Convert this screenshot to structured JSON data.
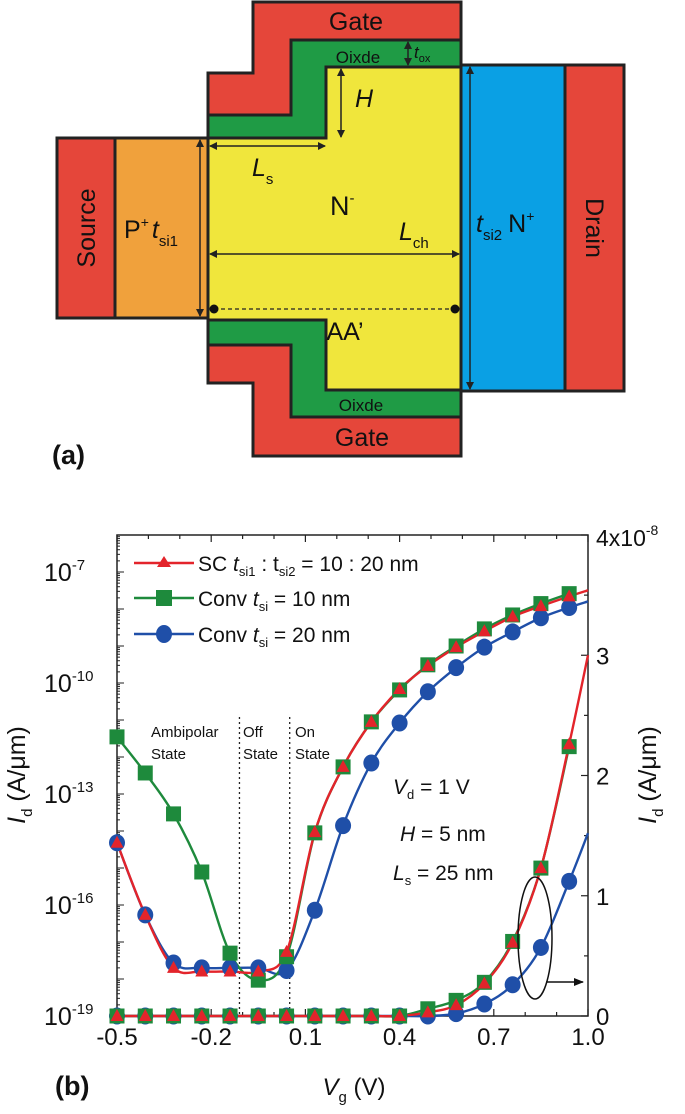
{
  "colors": {
    "gate": "#e5463a",
    "oxide": "#1f9b45",
    "channel": "#f0e63c",
    "source_p": "#f0a13c",
    "drain_n": "#0aa0e4",
    "outline": "#222222"
  },
  "diagram": {
    "panel_label": "(a)",
    "gate_top": "Gate",
    "gate_bottom": "Gate",
    "oxide_top": "Oixde",
    "oxide_bottom": "Oixde",
    "tox": {
      "main": "t",
      "sub": "ox"
    },
    "h": "H",
    "ls": {
      "main": "L",
      "sub": "s"
    },
    "n_minus": {
      "main": "N",
      "sup": "-"
    },
    "lch": {
      "main": "L",
      "sub": "ch"
    },
    "source": "Source",
    "drain": "Drain",
    "p_plus": {
      "main": "P",
      "sup": "+"
    },
    "tsi1": {
      "main": "t",
      "sub": "si1"
    },
    "tsi2": {
      "main": "t",
      "sub": "si2"
    },
    "n_plus": {
      "main": "N",
      "sup": "+"
    },
    "aa": "AA’"
  },
  "chart_data": {
    "type": "scatter",
    "panel_label": "(b)",
    "xlabel": {
      "main": "V",
      "sub": "g",
      "unit": " (V)"
    },
    "ylabel_left": {
      "main": "I",
      "sub": "d",
      "unit": " (A/μm)"
    },
    "ylabel_right": {
      "main": "I",
      "sub": "d",
      "unit": " (A/μm)"
    },
    "xlim": [
      -0.5,
      1.0
    ],
    "ylim_left_log": [
      1e-19,
      1e-06
    ],
    "ylim_right_linear": [
      0,
      4e-08
    ],
    "left_scale": "log",
    "right_scale": "linear",
    "x_ticks": [
      "-0.5",
      "-0.2",
      "0.1",
      "0.4",
      "0.7",
      "1.0"
    ],
    "x_tick_values": [
      -0.5,
      -0.2,
      0.1,
      0.4,
      0.7,
      1.0
    ],
    "y_left_ticks": [
      {
        "base": "10",
        "exp": "-19",
        "value": 1e-19
      },
      {
        "base": "10",
        "exp": "-16",
        "value": 1e-16
      },
      {
        "base": "10",
        "exp": "-13",
        "value": 1e-13
      },
      {
        "base": "10",
        "exp": "-10",
        "value": 1e-10
      },
      {
        "base": "10",
        "exp": "-7",
        "value": 1e-07
      }
    ],
    "y_right_ticks": [
      {
        "label": "0",
        "value": 0
      },
      {
        "label": "1",
        "value": 1e-08
      },
      {
        "label": "2",
        "value": 2e-08
      },
      {
        "label": "3",
        "value": 3e-08
      }
    ],
    "y_right_top_label": {
      "base": "4x10",
      "exp": "-8"
    },
    "grid": false,
    "legend_placement": "top-left",
    "x": [
      -0.5,
      -0.41,
      -0.32,
      -0.23,
      -0.14,
      -0.05,
      0.04,
      0.13,
      0.22,
      0.31,
      0.4,
      0.49,
      0.58,
      0.67,
      0.76,
      0.85,
      0.94
    ],
    "series": [
      {
        "name": "Conv t_si = 20 nm",
        "legend": {
          "pre": "Conv ",
          "main": "t",
          "sub": "si",
          "post": " =  20 nm"
        },
        "color": "#1f4fa8",
        "marker": "circle",
        "log_values": [
          4.8e-15,
          5.4e-17,
          2.7e-18,
          2e-18,
          2e-18,
          2e-18,
          1.7e-18,
          7.2e-17,
          1.4e-14,
          6.9e-13,
          8.3e-12,
          5.8e-11,
          2.6e-10,
          9.3e-10,
          2.4e-09,
          5.8e-09,
          1.1e-08
        ],
        "log_line_end": [
          1.0,
          1.6e-08
        ],
        "linear_values": [
          0,
          0,
          0,
          0,
          0,
          0,
          0,
          0,
          0,
          0,
          0,
          0,
          2e-10,
          1e-09,
          2.6e-09,
          5.7e-09,
          1.12e-08
        ],
        "linear_line_end": [
          1.0,
          1.52e-08
        ]
      },
      {
        "name": "Conv t_si = 10 nm",
        "legend": {
          "pre": "Conv ",
          "main": "t",
          "sub": "si",
          "post": " =  10 nm"
        },
        "color": "#1e8a3c",
        "marker": "square",
        "log_values": [
          3.5e-12,
          3.7e-13,
          2.9e-14,
          7.8e-16,
          5e-18,
          9.3e-19,
          4e-18,
          8.9e-15,
          5.4e-13,
          8.9e-12,
          6.5e-11,
          3.1e-10,
          1e-09,
          2.9e-09,
          6.9e-09,
          1.4e-08,
          2.6e-08
        ],
        "linear_values": [
          0,
          0,
          0,
          0,
          0,
          0,
          0,
          0,
          0,
          0,
          0,
          6e-10,
          1.3e-09,
          2.8e-09,
          6.2e-09,
          1.23e-08,
          2.24e-08
        ]
      },
      {
        "name": "SC t_si1 : t_si2 = 10 : 20 nm",
        "legend": {
          "pre": "SC ",
          "main": "t",
          "sub": "si1",
          "mid": " : t",
          "sub2": "si2",
          "post": " =  10 : 20 nm"
        },
        "color": "#e3242b",
        "marker": "triangle",
        "log_values": [
          4.8e-15,
          5.4e-17,
          2e-18,
          1.6e-18,
          1.6e-18,
          1.6e-18,
          5.4e-18,
          9.3e-15,
          5.4e-13,
          8.9e-12,
          6.9e-11,
          2.9e-10,
          9.3e-10,
          2.5e-09,
          6.2e-09,
          1.2e-08,
          2.2e-08
        ],
        "log_line_end": [
          1.0,
          3.2e-08
        ],
        "linear_values": [
          0,
          0,
          0,
          0,
          0,
          0,
          0,
          0,
          0,
          0,
          0,
          3e-10,
          9e-10,
          2.7e-09,
          6.1e-09,
          1.23e-08,
          2.26e-08
        ],
        "linear_line_end": [
          1.0,
          3e-08
        ]
      }
    ],
    "region_dividers_x": [
      -0.11,
      0.05
    ],
    "annotations": {
      "ambipolar": [
        "Ambipolar",
        "State"
      ],
      "off": [
        "Off",
        "State"
      ],
      "on": [
        "On",
        "State"
      ],
      "vd": {
        "main": "V",
        "sub": "d",
        "post": " = 1 V"
      },
      "h": {
        "main": "H",
        "post": " = 5 nm"
      },
      "ls": {
        "main": "L",
        "sub": "s",
        "post": " = 25 nm"
      },
      "ellipse_arrow": "right-axis"
    }
  }
}
